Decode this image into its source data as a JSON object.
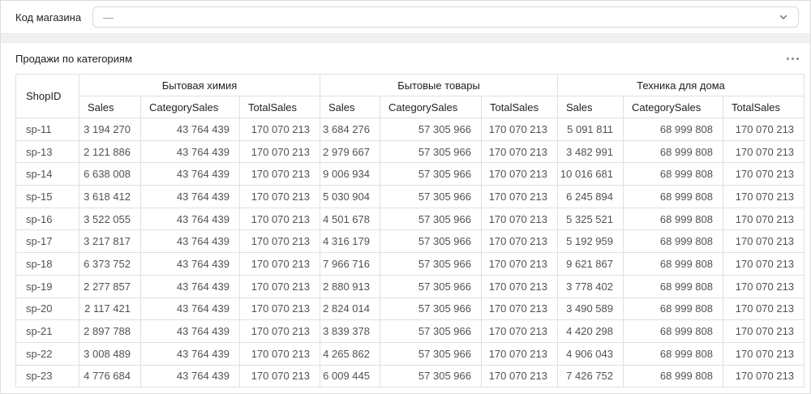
{
  "filter": {
    "label": "Код магазина",
    "value": "—"
  },
  "icons": {
    "select_icon": "chevron-down",
    "widget_menu_icon": "ellipsis-horizontal"
  },
  "card": {
    "title": "Продажи по категориям"
  },
  "table": {
    "corner_header": "ShopID",
    "groups": [
      {
        "label": "Бытовая химия",
        "columns": [
          "Sales",
          "CategorySales",
          "TotalSales"
        ]
      },
      {
        "label": "Бытовые товары",
        "columns": [
          "Sales",
          "CategorySales",
          "TotalSales"
        ]
      },
      {
        "label": "Техника для дома",
        "columns": [
          "Sales",
          "CategorySales",
          "TotalSales"
        ]
      }
    ],
    "rows": [
      {
        "shop_id": "sp-11",
        "cells": [
          "3 194 270",
          "43 764 439",
          "170 070 213",
          "3 684 276",
          "57 305 966",
          "170 070 213",
          "5 091 811",
          "68 999 808",
          "170 070 213"
        ]
      },
      {
        "shop_id": "sp-13",
        "cells": [
          "2 121 886",
          "43 764 439",
          "170 070 213",
          "2 979 667",
          "57 305 966",
          "170 070 213",
          "3 482 991",
          "68 999 808",
          "170 070 213"
        ]
      },
      {
        "shop_id": "sp-14",
        "cells": [
          "6 638 008",
          "43 764 439",
          "170 070 213",
          "9 006 934",
          "57 305 966",
          "170 070 213",
          "10 016 681",
          "68 999 808",
          "170 070 213"
        ]
      },
      {
        "shop_id": "sp-15",
        "cells": [
          "3 618 412",
          "43 764 439",
          "170 070 213",
          "5 030 904",
          "57 305 966",
          "170 070 213",
          "6 245 894",
          "68 999 808",
          "170 070 213"
        ]
      },
      {
        "shop_id": "sp-16",
        "cells": [
          "3 522 055",
          "43 764 439",
          "170 070 213",
          "4 501 678",
          "57 305 966",
          "170 070 213",
          "5 325 521",
          "68 999 808",
          "170 070 213"
        ]
      },
      {
        "shop_id": "sp-17",
        "cells": [
          "3 217 817",
          "43 764 439",
          "170 070 213",
          "4 316 179",
          "57 305 966",
          "170 070 213",
          "5 192 959",
          "68 999 808",
          "170 070 213"
        ]
      },
      {
        "shop_id": "sp-18",
        "cells": [
          "6 373 752",
          "43 764 439",
          "170 070 213",
          "7 966 716",
          "57 305 966",
          "170 070 213",
          "9 621 867",
          "68 999 808",
          "170 070 213"
        ]
      },
      {
        "shop_id": "sp-19",
        "cells": [
          "2 277 857",
          "43 764 439",
          "170 070 213",
          "2 880 913",
          "57 305 966",
          "170 070 213",
          "3 778 402",
          "68 999 808",
          "170 070 213"
        ]
      },
      {
        "shop_id": "sp-20",
        "cells": [
          "2 117 421",
          "43 764 439",
          "170 070 213",
          "2 824 014",
          "57 305 966",
          "170 070 213",
          "3 490 589",
          "68 999 808",
          "170 070 213"
        ]
      },
      {
        "shop_id": "sp-21",
        "cells": [
          "2 897 788",
          "43 764 439",
          "170 070 213",
          "3 839 378",
          "57 305 966",
          "170 070 213",
          "4 420 298",
          "68 999 808",
          "170 070 213"
        ]
      },
      {
        "shop_id": "sp-22",
        "cells": [
          "3 008 489",
          "43 764 439",
          "170 070 213",
          "4 265 862",
          "57 305 966",
          "170 070 213",
          "4 906 043",
          "68 999 808",
          "170 070 213"
        ]
      },
      {
        "shop_id": "sp-23",
        "cells": [
          "4 776 684",
          "43 764 439",
          "170 070 213",
          "6 009 445",
          "57 305 966",
          "170 070 213",
          "7 426 752",
          "68 999 808",
          "170 070 213"
        ]
      }
    ]
  },
  "theme": {
    "border_color": "#e0e0e2",
    "band_color": "#f0f0f2",
    "header_text": "#1f1f1f",
    "cell_text": "#525252",
    "placeholder_text": "#979590"
  }
}
